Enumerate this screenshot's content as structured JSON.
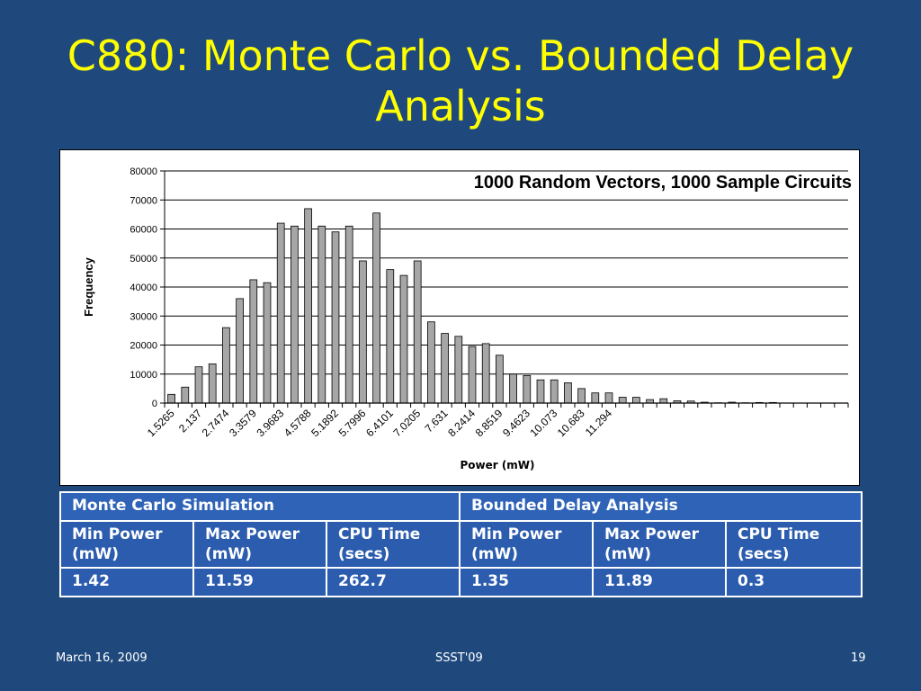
{
  "slide": {
    "title": "C880: Monte Carlo vs. Bounded Delay Analysis",
    "footer_date": "March 16, 2009",
    "footer_center": "SSST'09",
    "footer_page": "19"
  },
  "chart_data": {
    "type": "bar",
    "annotation": "1000 Random Vectors, 1000 Sample Circuits",
    "xlabel": "Power (mW)",
    "ylabel": "Frequency",
    "ylim": [
      0,
      80000
    ],
    "yticks": [
      0,
      10000,
      20000,
      30000,
      40000,
      50000,
      60000,
      70000,
      80000
    ],
    "xtick_labels": [
      "1.5265",
      "2.137",
      "2.7474",
      "3.3579",
      "3.9683",
      "4.5788",
      "5.1892",
      "5.7996",
      "6.4101",
      "7.0205",
      "7.631",
      "8.2414",
      "8.8519",
      "9.4623",
      "10.073",
      "10.683",
      "11.294"
    ],
    "xtick_every": 2,
    "values": [
      3000,
      5500,
      12500,
      13500,
      26000,
      36000,
      42500,
      41500,
      62000,
      61000,
      67000,
      61000,
      59000,
      61000,
      49000,
      65500,
      46000,
      44000,
      49000,
      28000,
      24000,
      23000,
      19500,
      20500,
      16500,
      10000,
      9500,
      8000,
      8000,
      7000,
      5000,
      3500,
      3500,
      2000,
      2000,
      1200,
      1500,
      800,
      700,
      300,
      100,
      300,
      100,
      200,
      200,
      0,
      0,
      0,
      0,
      0
    ],
    "grid": true,
    "legend": "none"
  },
  "table": {
    "headers": [
      "Monte Carlo Simulation",
      "Bounded Delay Analysis"
    ],
    "subheaders": [
      "Min Power (mW)",
      "Max Power (mW)",
      "CPU Time (secs)",
      "Min Power (mW)",
      "Max Power (mW)",
      "CPU Time (secs)"
    ],
    "values": [
      "1.42",
      "11.59",
      "262.7",
      "1.35",
      "11.89",
      "0.3"
    ]
  }
}
